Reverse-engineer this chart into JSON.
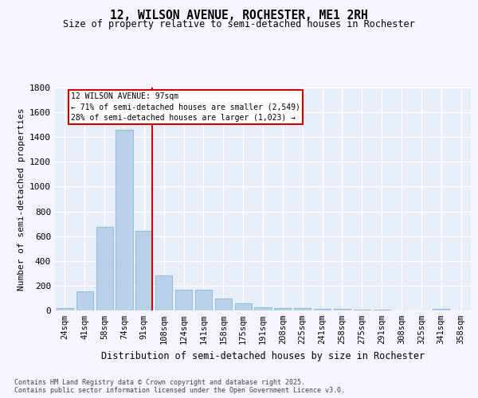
{
  "title_line1": "12, WILSON AVENUE, ROCHESTER, ME1 2RH",
  "title_line2": "Size of property relative to semi-detached houses in Rochester",
  "xlabel": "Distribution of semi-detached houses by size in Rochester",
  "ylabel": "Number of semi-detached properties",
  "categories": [
    "24sqm",
    "41sqm",
    "58sqm",
    "74sqm",
    "91sqm",
    "108sqm",
    "124sqm",
    "141sqm",
    "158sqm",
    "175sqm",
    "191sqm",
    "208sqm",
    "225sqm",
    "241sqm",
    "258sqm",
    "275sqm",
    "291sqm",
    "308sqm",
    "325sqm",
    "341sqm",
    "358sqm"
  ],
  "values": [
    20,
    155,
    675,
    1460,
    640,
    280,
    170,
    170,
    95,
    55,
    28,
    22,
    20,
    15,
    10,
    5,
    5,
    3,
    2,
    12,
    2
  ],
  "bar_color": "#b8d0e8",
  "bar_edge_color": "#7aafd4",
  "vline_index": 4,
  "vline_color": "#cc0000",
  "annotation_title": "12 WILSON AVENUE: 97sqm",
  "annotation_line2": "← 71% of semi-detached houses are smaller (2,549)",
  "annotation_line3": "28% of semi-detached houses are larger (1,023) →",
  "annotation_box_color": "#cc0000",
  "ylim": [
    0,
    1800
  ],
  "yticks": [
    0,
    200,
    400,
    600,
    800,
    1000,
    1200,
    1400,
    1600,
    1800
  ],
  "bg_color": "#e8eef8",
  "grid_color": "#ffffff",
  "fig_bg_color": "#f5f5ff",
  "footer_line1": "Contains HM Land Registry data © Crown copyright and database right 2025.",
  "footer_line2": "Contains public sector information licensed under the Open Government Licence v3.0."
}
